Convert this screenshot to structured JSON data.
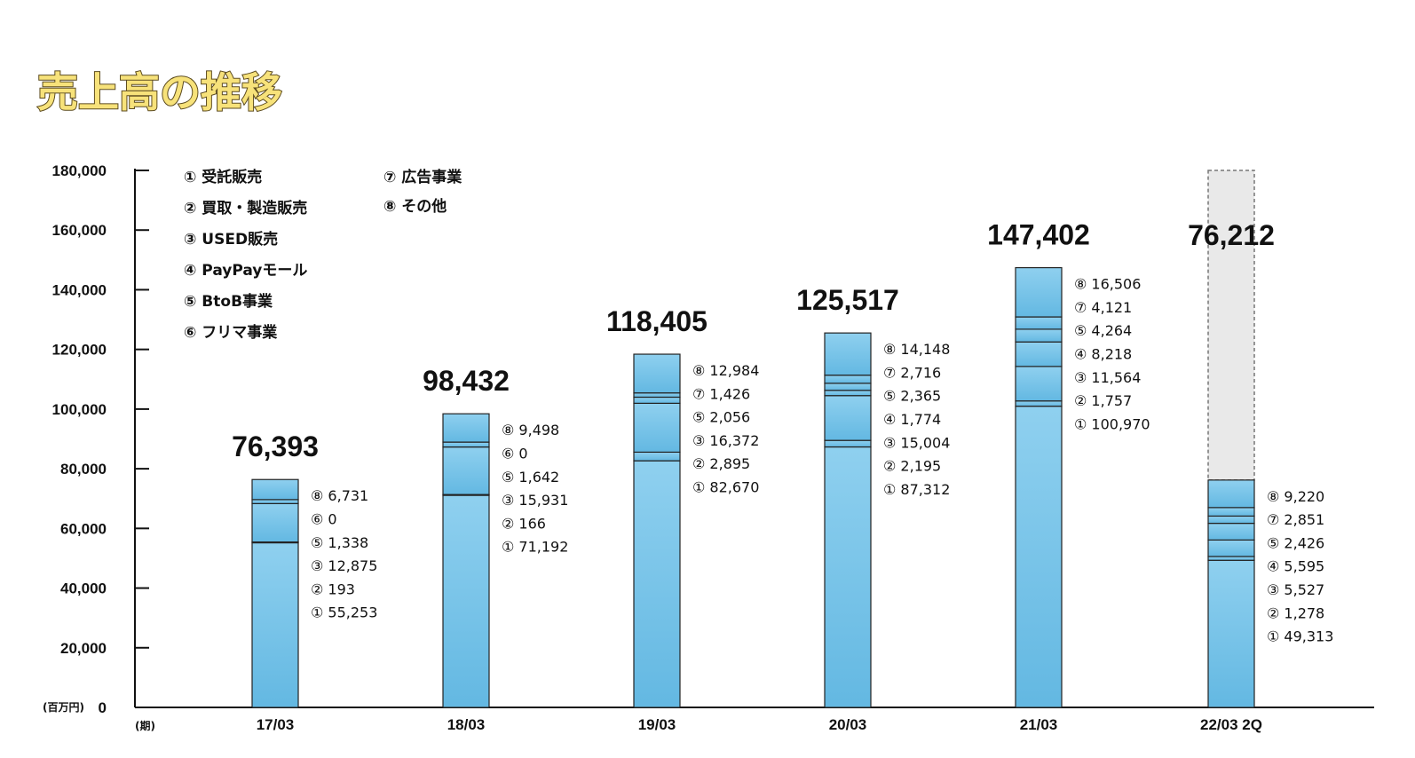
{
  "chart_data": {
    "type": "bar",
    "stacked": true,
    "title": "売上高の推移",
    "unit_label": "(百万円)",
    "xaxis_label": "(期)",
    "ylim": [
      0,
      180000
    ],
    "yticks": [
      "0",
      "20,000",
      "40,000",
      "60,000",
      "80,000",
      "100,000",
      "120,000",
      "140,000",
      "160,000",
      "180,000"
    ],
    "legend": [
      "① 受託販売",
      "② 買取・製造販売",
      "③ USED販売",
      "④ PayPayモール",
      "⑤ BtoB事業",
      "⑥ フリマ事業",
      "⑦ 広告事業",
      "⑧ その他"
    ],
    "colors": {
      "bar": "#8fd0ef",
      "bar_dark": "#63b8e2",
      "forecast": "#e9e9e9",
      "axis": "#111111"
    },
    "categories": [
      "17/03",
      "18/03",
      "19/03",
      "20/03",
      "21/03",
      "22/03 2Q"
    ],
    "bars": [
      {
        "category": "17/03",
        "total": 76393,
        "total_label": "76,393",
        "segments": [
          {
            "mark": "①",
            "value": 55253,
            "label": "55,253"
          },
          {
            "mark": "②",
            "value": 193,
            "label": "193"
          },
          {
            "mark": "③",
            "value": 12875,
            "label": "12,875"
          },
          {
            "mark": "⑤",
            "value": 1338,
            "label": "1,338"
          },
          {
            "mark": "⑥",
            "value": 0,
            "label": "0"
          },
          {
            "mark": "⑧",
            "value": 6731,
            "label": "6,731"
          }
        ]
      },
      {
        "category": "18/03",
        "total": 98432,
        "total_label": "98,432",
        "segments": [
          {
            "mark": "①",
            "value": 71192,
            "label": "71,192"
          },
          {
            "mark": "②",
            "value": 166,
            "label": "166"
          },
          {
            "mark": "③",
            "value": 15931,
            "label": "15,931"
          },
          {
            "mark": "⑤",
            "value": 1642,
            "label": "1,642"
          },
          {
            "mark": "⑥",
            "value": 0,
            "label": "0"
          },
          {
            "mark": "⑧",
            "value": 9498,
            "label": "9,498"
          }
        ]
      },
      {
        "category": "19/03",
        "total": 118405,
        "total_label": "118,405",
        "segments": [
          {
            "mark": "①",
            "value": 82670,
            "label": "82,670"
          },
          {
            "mark": "②",
            "value": 2895,
            "label": "2,895"
          },
          {
            "mark": "③",
            "value": 16372,
            "label": "16,372"
          },
          {
            "mark": "⑤",
            "value": 2056,
            "label": "2,056"
          },
          {
            "mark": "⑦",
            "value": 1426,
            "label": "1,426"
          },
          {
            "mark": "⑧",
            "value": 12984,
            "label": "12,984"
          }
        ]
      },
      {
        "category": "20/03",
        "total": 125517,
        "total_label": "125,517",
        "segments": [
          {
            "mark": "①",
            "value": 87312,
            "label": "87,312"
          },
          {
            "mark": "②",
            "value": 2195,
            "label": "2,195"
          },
          {
            "mark": "③",
            "value": 15004,
            "label": "15,004"
          },
          {
            "mark": "④",
            "value": 1774,
            "label": "1,774"
          },
          {
            "mark": "⑤",
            "value": 2365,
            "label": "2,365"
          },
          {
            "mark": "⑦",
            "value": 2716,
            "label": "2,716"
          },
          {
            "mark": "⑧",
            "value": 14148,
            "label": "14,148"
          }
        ]
      },
      {
        "category": "21/03",
        "total": 147402,
        "total_label": "147,402",
        "segments": [
          {
            "mark": "①",
            "value": 100970,
            "label": "100,970"
          },
          {
            "mark": "②",
            "value": 1757,
            "label": "1,757"
          },
          {
            "mark": "③",
            "value": 11564,
            "label": "11,564"
          },
          {
            "mark": "④",
            "value": 8218,
            "label": "8,218"
          },
          {
            "mark": "⑤",
            "value": 4264,
            "label": "4,264"
          },
          {
            "mark": "⑦",
            "value": 4121,
            "label": "4,121"
          },
          {
            "mark": "⑧",
            "value": 16506,
            "label": "16,506"
          }
        ]
      },
      {
        "category": "22/03 2Q",
        "total": 76212,
        "total_label": "76,212",
        "forecast_top": 180000,
        "segments": [
          {
            "mark": "①",
            "value": 49313,
            "label": "49,313"
          },
          {
            "mark": "②",
            "value": 1278,
            "label": "1,278"
          },
          {
            "mark": "③",
            "value": 5527,
            "label": "5,527"
          },
          {
            "mark": "④",
            "value": 5595,
            "label": "5,595"
          },
          {
            "mark": "⑤",
            "value": 2426,
            "label": "2,426"
          },
          {
            "mark": "⑦",
            "value": 2851,
            "label": "2,851"
          },
          {
            "mark": "⑧",
            "value": 9220,
            "label": "9,220"
          }
        ]
      }
    ]
  }
}
